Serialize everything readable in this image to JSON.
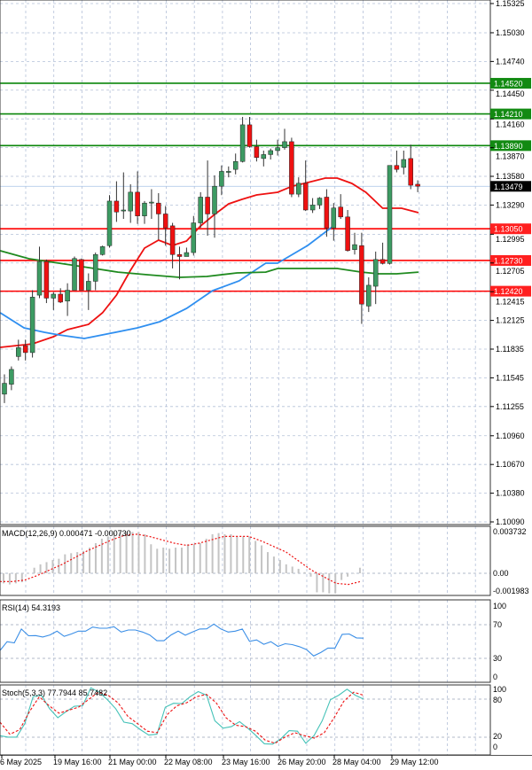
{
  "colors": {
    "bull": "#3d9b63",
    "bear": "#ee1111",
    "wick": "#333333",
    "resistance": "#0a860a",
    "support": "#ff0000",
    "ma_fast": "#ee1111",
    "ma_mid": "#2f8ff0",
    "ma_slow": "#1f8a1f",
    "rsi": "#3a8ee6",
    "stoch_main": "#45c2b8",
    "stoch_signal": "#ee1111",
    "grid": "#b4c0d8",
    "macd_hist": "#c4c4c4"
  },
  "chart_data": [
    {
      "type": "candlestick",
      "ylim": [
        1.1009,
        1.15325
      ],
      "y_ticks": [
        "1.15325",
        "1.15030",
        "1.14740",
        "1.14450",
        "1.14160",
        "1.13870",
        "1.13580",
        "1.13290",
        "1.12995",
        "1.12705",
        "1.12415",
        "1.12125",
        "1.11835",
        "1.11545",
        "1.11255",
        "1.10960",
        "1.10670",
        "1.10380",
        "1.10090"
      ],
      "x_tick_labels": [
        "6 May 2025",
        "19 May 16:00",
        "21 May 00:00",
        "22 May 08:00",
        "23 May 16:00",
        "26 May 20:00",
        "28 May 04:00",
        "29 May 12:00"
      ],
      "grid": true,
      "ohlc": [
        [
          1.1138,
          1.1158,
          1.1129,
          1.1149
        ],
        [
          1.1148,
          1.1166,
          1.1142,
          1.1163
        ],
        [
          1.1176,
          1.1193,
          1.1172,
          1.1185
        ],
        [
          1.1187,
          1.1193,
          1.1172,
          1.118
        ],
        [
          1.118,
          1.1243,
          1.1175,
          1.1236
        ],
        [
          1.1238,
          1.1287,
          1.1235,
          1.1272
        ],
        [
          1.1272,
          1.1274,
          1.123,
          1.1235
        ],
        [
          1.1235,
          1.1241,
          1.1223,
          1.1239
        ],
        [
          1.1239,
          1.1245,
          1.123,
          1.1231
        ],
        [
          1.1232,
          1.125,
          1.1217,
          1.1243
        ],
        [
          1.1243,
          1.1277,
          1.1243,
          1.1275
        ],
        [
          1.1274,
          1.1275,
          1.1243,
          1.1243
        ],
        [
          1.1243,
          1.126,
          1.1223,
          1.1252
        ],
        [
          1.1252,
          1.1281,
          1.1243,
          1.1279
        ],
        [
          1.1279,
          1.1288,
          1.1278,
          1.1287
        ],
        [
          1.1288,
          1.1339,
          1.1286,
          1.1333
        ],
        [
          1.1333,
          1.1353,
          1.1312,
          1.1322
        ],
        [
          1.1323,
          1.1362,
          1.1315,
          1.1324
        ],
        [
          1.1323,
          1.135,
          1.1311,
          1.1342
        ],
        [
          1.1342,
          1.1363,
          1.131,
          1.1318
        ],
        [
          1.1318,
          1.1333,
          1.131,
          1.1331
        ],
        [
          1.1331,
          1.1345,
          1.1315,
          1.1332
        ],
        [
          1.1331,
          1.1341,
          1.1294,
          1.132
        ],
        [
          1.132,
          1.1328,
          1.1288,
          1.1306
        ],
        [
          1.1308,
          1.1311,
          1.1265,
          1.1279
        ],
        [
          1.1279,
          1.1287,
          1.1254,
          1.1277
        ],
        [
          1.1277,
          1.1286,
          1.1277,
          1.1281
        ],
        [
          1.1281,
          1.1318,
          1.1278,
          1.1311
        ],
        [
          1.1311,
          1.1342,
          1.1306,
          1.1337
        ],
        [
          1.1337,
          1.1374,
          1.1298,
          1.132
        ],
        [
          1.132,
          1.1359,
          1.1296,
          1.1348
        ],
        [
          1.1348,
          1.1369,
          1.1339,
          1.1363
        ],
        [
          1.1362,
          1.1368,
          1.1357,
          1.1363
        ],
        [
          1.1365,
          1.1381,
          1.136,
          1.1373
        ],
        [
          1.1373,
          1.1418,
          1.1372,
          1.141
        ],
        [
          1.141,
          1.1418,
          1.1387,
          1.1388
        ],
        [
          1.1388,
          1.1395,
          1.1373,
          1.1377
        ],
        [
          1.1376,
          1.1384,
          1.1368,
          1.138
        ],
        [
          1.138,
          1.1386,
          1.1375,
          1.1384
        ],
        [
          1.1384,
          1.1395,
          1.1379,
          1.1387
        ],
        [
          1.1387,
          1.1406,
          1.1385,
          1.1393
        ],
        [
          1.1393,
          1.1397,
          1.1337,
          1.134
        ],
        [
          1.134,
          1.1357,
          1.1337,
          1.1351
        ],
        [
          1.1351,
          1.1374,
          1.1323,
          1.1324
        ],
        [
          1.1324,
          1.1336,
          1.1321,
          1.1329
        ],
        [
          1.1329,
          1.1337,
          1.1325,
          1.1336
        ],
        [
          1.1337,
          1.1345,
          1.1297,
          1.1306
        ],
        [
          1.1306,
          1.1331,
          1.1293,
          1.1326
        ],
        [
          1.1327,
          1.134,
          1.1315,
          1.1317
        ],
        [
          1.1317,
          1.1324,
          1.1282,
          1.1283
        ],
        [
          1.1284,
          1.1301,
          1.1279,
          1.1289
        ],
        [
          1.1288,
          1.1301,
          1.1209,
          1.1229
        ],
        [
          1.1227,
          1.1256,
          1.1221,
          1.1248
        ],
        [
          1.1247,
          1.1282,
          1.1229,
          1.1274
        ],
        [
          1.1274,
          1.1291,
          1.1269,
          1.127
        ],
        [
          1.127,
          1.1369,
          1.1269,
          1.1369
        ],
        [
          1.1369,
          1.1384,
          1.1362,
          1.1365
        ],
        [
          1.1367,
          1.1384,
          1.136,
          1.1375
        ],
        [
          1.1376,
          1.139,
          1.1345,
          1.1349
        ],
        [
          1.135,
          1.1354,
          1.1342,
          1.1348
        ]
      ],
      "moving_averages": [
        {
          "color_key": "ma_fast",
          "points": [
            [
              -0.6,
              1.11853
            ],
            [
              4,
              1.11888
            ],
            [
              7,
              1.1196
            ],
            [
              9,
              1.12032
            ],
            [
              12,
              1.12085
            ],
            [
              14,
              1.12202
            ],
            [
              16,
              1.12381
            ],
            [
              18,
              1.12631
            ],
            [
              20,
              1.12855
            ],
            [
              22,
              1.12936
            ],
            [
              24,
              1.12882
            ],
            [
              26,
              1.12927
            ],
            [
              28,
              1.13079
            ],
            [
              30,
              1.13195
            ],
            [
              32,
              1.13302
            ],
            [
              33.9,
              1.13347
            ],
            [
              36,
              1.13392
            ],
            [
              39,
              1.13419
            ],
            [
              41.1,
              1.13481
            ],
            [
              42.8,
              1.13508
            ],
            [
              45.8,
              1.13562
            ],
            [
              47.5,
              1.13562
            ],
            [
              49.6,
              1.13508
            ],
            [
              51.6,
              1.13419
            ],
            [
              54,
              1.13258
            ],
            [
              56.7,
              1.13258
            ],
            [
              59.1,
              1.13213
            ]
          ]
        },
        {
          "color_key": "ma_mid",
          "points": [
            [
              -0.6,
              1.12202
            ],
            [
              2.8,
              1.1205
            ],
            [
              5.7,
              1.12005
            ],
            [
              7.8,
              1.11978
            ],
            [
              11.4,
              1.11942
            ],
            [
              14.6,
              1.11987
            ],
            [
              19,
              1.1205
            ],
            [
              22.2,
              1.12112
            ],
            [
              26,
              1.12246
            ],
            [
              29.7,
              1.12425
            ],
            [
              33.5,
              1.12524
            ],
            [
              37.3,
              1.12703
            ],
            [
              39,
              1.12703
            ],
            [
              39.0,
              1.12703
            ],
            [
              43.3,
              1.12882
            ],
            [
              43.3,
              1.12882
            ],
            [
              47.3,
              1.13097
            ],
            [
              43.3,
              1.12882
            ]
          ]
        },
        {
          "color_key": "ma_slow",
          "points": [
            [
              -0.6,
              1.12828
            ],
            [
              3.5,
              1.12748
            ],
            [
              7.8,
              1.12703
            ],
            [
              12,
              1.12658
            ],
            [
              16.2,
              1.12613
            ],
            [
              20.5,
              1.12586
            ],
            [
              25,
              1.1256
            ],
            [
              28.9,
              1.12569
            ],
            [
              33.2,
              1.12605
            ],
            [
              37.3,
              1.12613
            ],
            [
              39,
              1.12649
            ],
            [
              43.3,
              1.12649
            ],
            [
              47.5,
              1.12649
            ],
            [
              51,
              1.12613
            ],
            [
              53.4,
              1.12596
            ],
            [
              56,
              1.12596
            ],
            [
              59.1,
              1.12613
            ]
          ]
        }
      ],
      "levels": [
        {
          "price": "1.14520",
          "kind": "resistance"
        },
        {
          "price": "1.14210",
          "kind": "resistance"
        },
        {
          "price": "1.13890",
          "kind": "resistance"
        },
        {
          "price": "1.13050",
          "kind": "support"
        },
        {
          "price": "1.12730",
          "kind": "support"
        },
        {
          "price": "1.12420",
          "kind": "support"
        }
      ],
      "current_price": "1.13479"
    },
    {
      "type": "bar",
      "title": "MACD(12,26,9) 0.000471 -0.000730",
      "ylim": [
        -0.001983,
        0.003732
      ],
      "y_tick_labels": [
        "0.003732",
        "0.00",
        "-0.001983"
      ],
      "histogram": [
        -0.0009,
        -0.001,
        -0.0009,
        -0.0008,
        0.0,
        0.0005,
        0.0008,
        0.001,
        0.0012,
        0.0013,
        0.0017,
        0.0018,
        0.0019,
        0.002,
        0.0023,
        0.0027,
        0.0031,
        0.0033,
        0.0036,
        0.0037,
        0.0037,
        0.0037,
        0.0037,
        0.0035,
        0.0026,
        0.0022,
        0.0023,
        0.0022,
        0.0023,
        0.0023,
        0.0026,
        0.0026,
        0.0027,
        0.0031,
        0.0035,
        0.0036,
        0.0035,
        0.0035,
        0.0033,
        0.0033,
        0.0033,
        0.0029,
        0.0025,
        0.0019,
        0.0015,
        0.0012,
        0.0008,
        0.0006,
        0.0004,
        0.0001,
        -0.0003,
        -0.0017,
        -0.0017,
        -0.0018,
        -0.0018,
        -0.0006,
        -0.0003,
        0.0,
        0.0005
      ],
      "signal": [
        -0.00074,
        -0.00074,
        -0.0006,
        -0.0002,
        0.0003,
        0.0008,
        0.0014,
        0.002,
        0.0025,
        0.003,
        0.0034,
        0.0035,
        0.0033,
        0.003,
        0.0027,
        0.0025,
        0.0027,
        0.003,
        0.0033,
        0.0033,
        0.0033,
        0.0029,
        0.0024,
        0.0019,
        0.0011,
        0.0003,
        -0.0003,
        -0.0009,
        -0.001,
        -0.00073
      ]
    },
    {
      "type": "line",
      "title": "RSI(14) 54.3193",
      "ylim": [
        0,
        100
      ],
      "y_tick_labels": [
        "100",
        "70",
        "30",
        "0"
      ],
      "values": [
        39.4,
        49.8,
        48.4,
        64.8,
        56.8,
        57.1,
        55.4,
        57.8,
        62.3,
        56.1,
        58.9,
        62.3,
        62.3,
        67.2,
        65.8,
        65.8,
        67.6,
        61.3,
        63.7,
        63.7,
        61.3,
        57.8,
        50.9,
        50.9,
        57.8,
        62.3,
        57.5,
        61.3,
        64.8,
        65.1,
        70.7,
        64.8,
        61.3,
        62.3,
        64.8,
        50.2,
        51.9,
        46.7,
        49.8,
        44.2,
        47.4,
        46.3,
        43.9,
        40.4,
        32.8,
        36.9,
        42.2,
        42.2,
        58.5,
        58.9,
        54.3,
        54.0
      ]
    },
    {
      "type": "line",
      "title": "Stoch(5,3,3) 77.7944 85.7482",
      "ylim": [
        0,
        100
      ],
      "y_tick_labels": [
        "100",
        "80",
        "20",
        "0"
      ],
      "main": [
        22.4,
        20.1,
        20.1,
        41.3,
        83.8,
        86.1,
        64.9,
        50.7,
        60.2,
        68.7,
        69.6,
        97.9,
        90.9,
        79.1,
        64.9,
        43.7,
        41.3,
        31.9,
        23.4,
        24.8,
        67.3,
        73.4,
        72.9,
        83.8,
        91.8,
        86.1,
        46.0,
        34.2,
        36.6,
        44.6,
        34.2,
        22.4,
        9.7,
        9.2,
        17.7,
        30.4,
        29.5,
        10.6,
        22.4,
        46.0,
        79.1,
        86.1,
        95.6,
        86.1,
        80.0
      ],
      "signal": [
        43.7,
        24.8,
        31.9,
        60.2,
        83.8,
        69.6,
        57.8,
        62.5,
        67.3,
        79.1,
        90.9,
        86.1,
        74.3,
        53.1,
        41.3,
        29.5,
        27.1,
        55.5,
        69.6,
        74.3,
        83.8,
        87.6,
        74.3,
        50.7,
        38.9,
        36.6,
        29.5,
        15.3,
        10.6,
        20.1,
        27.1,
        22.4,
        18.6,
        27.1,
        50.7,
        76.7,
        90.9,
        86.1
      ]
    }
  ]
}
